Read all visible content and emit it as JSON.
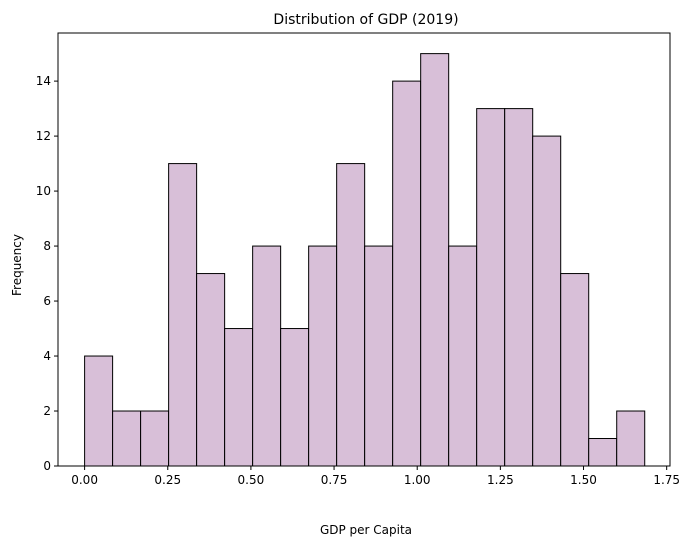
{
  "chart_data": {
    "type": "histogram",
    "title": "Distribution of GDP (2019)",
    "xlabel": "GDP per Capita",
    "ylabel": "Frequency",
    "xlim": [
      -0.08,
      1.76
    ],
    "ylim": [
      0,
      15.75
    ],
    "xticks": [
      0.0,
      0.25,
      0.5,
      0.75,
      1.0,
      1.25,
      1.5,
      1.75
    ],
    "xtick_labels": [
      "0.00",
      "0.25",
      "0.50",
      "0.75",
      "1.00",
      "1.25",
      "1.50",
      "1.75"
    ],
    "yticks": [
      0,
      2,
      4,
      6,
      8,
      10,
      12,
      14
    ],
    "ytick_labels": [
      "0",
      "2",
      "4",
      "6",
      "8",
      "10",
      "12",
      "14"
    ],
    "bin_start": 0.0,
    "bin_width": 0.0842,
    "counts": [
      4,
      2,
      2,
      11,
      7,
      5,
      8,
      5,
      8,
      11,
      8,
      14,
      15,
      8,
      13,
      13,
      12,
      7,
      1,
      2
    ],
    "grid": false,
    "colors": {
      "bar_fill": "#d8bfd8",
      "bar_edge": "#000000",
      "axes": "#000000"
    }
  }
}
